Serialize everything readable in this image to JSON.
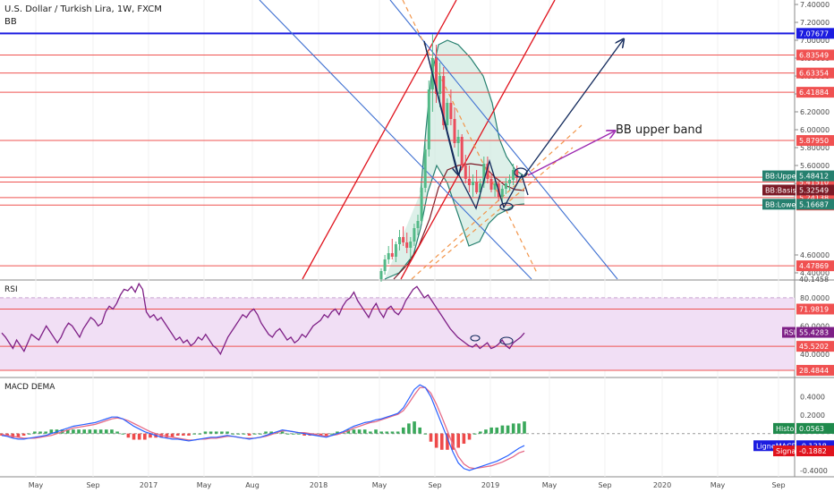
{
  "header": {
    "title": "U.S. Dollar / Turkish Lira, 1W, FXCM",
    "indicator": "BB"
  },
  "annotation": "BB upper band",
  "colors": {
    "up": "#53b987",
    "down": "#eb4d5c",
    "bb_basis": "#7b1a26",
    "bb_band": "#26806f",
    "bb_fill": "#cfe9e0",
    "rsi": "#7e1f86",
    "rsi_fill": "#f1dff5",
    "macd": "#2962ff",
    "signal": "#e66b87",
    "hline": "#ef5350",
    "arrow": "#132a5c",
    "annot_arrow": "#9c27b0"
  },
  "chart_data": [
    {
      "type": "candlestick",
      "panel": "price",
      "x_ticks": [
        "May",
        "Sep",
        "2017",
        "May",
        "Aug",
        "2018",
        "May",
        "Sep",
        "2019",
        "May",
        "Sep",
        "2020",
        "May",
        "Sep"
      ],
      "y_ticks": [
        "7.40000",
        "7.20000",
        "7.00000",
        "6.80000",
        "6.60000",
        "6.40000",
        "6.20000",
        "6.00000",
        "5.80000",
        "5.60000",
        "5.40000",
        "4.60000",
        "4.40000"
      ],
      "ylim": [
        4.33,
        7.45
      ],
      "horizontal_levels": [
        {
          "label": "7.07677",
          "value": 7.07677,
          "color": "#1c1ce0"
        },
        {
          "label": "6.83549",
          "value": 6.83549,
          "color": "#ef5350"
        },
        {
          "label": "6.63354",
          "value": 6.63354,
          "color": "#ef5350"
        },
        {
          "label": "6.41884",
          "value": 6.41884,
          "color": "#ef5350"
        },
        {
          "label": "5.87950",
          "value": 5.8795,
          "color": "#ef5350"
        },
        {
          "label": "5.46863",
          "value": 5.46863,
          "color": "#ef5350"
        },
        {
          "label": "5.41510",
          "value": 5.4151,
          "color": "#ef5350"
        },
        {
          "label": "5.24138",
          "value": 5.24138,
          "color": "#ef5350"
        },
        {
          "label": "5.15799",
          "value": 5.15799,
          "color": "#ef5350"
        },
        {
          "label": "4.47869",
          "value": 4.47869,
          "color": "#ef5350"
        }
      ],
      "bb_tags": [
        {
          "label": "BB:Upper",
          "value_label": "5.48412",
          "value": 5.48412,
          "color": "#26806f"
        },
        {
          "label": "BB:Basis",
          "value_label": "5.32549",
          "value": 5.32549,
          "color": "#7b1a26"
        },
        {
          "label": "BB:Lower",
          "value_label": "5.16687",
          "value": 5.16687,
          "color": "#26806f"
        }
      ],
      "cut_off_label": "40.1458",
      "candles_w": [
        [
          4.33,
          4.45,
          4.3,
          4.42
        ],
        [
          4.42,
          4.6,
          4.38,
          4.55
        ],
        [
          4.55,
          4.7,
          4.5,
          4.62
        ],
        [
          4.62,
          4.78,
          4.55,
          4.58
        ],
        [
          4.58,
          4.75,
          4.52,
          4.72
        ],
        [
          4.72,
          4.88,
          4.65,
          4.8
        ],
        [
          4.8,
          4.92,
          4.7,
          4.74
        ],
        [
          4.74,
          4.85,
          4.62,
          4.68
        ],
        [
          4.68,
          4.8,
          4.55,
          4.75
        ],
        [
          4.75,
          4.95,
          4.7,
          4.9
        ],
        [
          4.9,
          5.05,
          4.82,
          4.98
        ],
        [
          4.98,
          5.4,
          4.95,
          5.35
        ],
        [
          5.35,
          5.85,
          5.3,
          5.78
        ],
        [
          5.78,
          6.55,
          5.7,
          6.45
        ],
        [
          6.45,
          7.07,
          6.2,
          6.8
        ],
        [
          6.8,
          6.95,
          6.3,
          6.4
        ],
        [
          6.4,
          6.75,
          6.25,
          6.6
        ],
        [
          6.6,
          6.7,
          6.0,
          6.05
        ],
        [
          6.05,
          6.35,
          5.95,
          6.3
        ],
        [
          6.3,
          6.45,
          6.05,
          6.12
        ],
        [
          6.12,
          6.25,
          5.8,
          5.85
        ],
        [
          5.85,
          6.0,
          5.7,
          5.92
        ],
        [
          5.92,
          5.95,
          5.55,
          5.6
        ],
        [
          5.6,
          5.72,
          5.4,
          5.45
        ],
        [
          5.45,
          5.6,
          5.3,
          5.38
        ],
        [
          5.38,
          5.5,
          5.25,
          5.42
        ],
        [
          5.42,
          5.55,
          5.28,
          5.3
        ],
        [
          5.3,
          5.45,
          5.22,
          5.4
        ],
        [
          5.4,
          5.7,
          5.35,
          5.62
        ],
        [
          5.62,
          5.7,
          5.4,
          5.45
        ],
        [
          5.45,
          5.52,
          5.3,
          5.33
        ],
        [
          5.33,
          5.45,
          5.25,
          5.4
        ],
        [
          5.4,
          5.42,
          5.2,
          5.25
        ],
        [
          5.25,
          5.38,
          5.18,
          5.34
        ],
        [
          5.34,
          5.46,
          5.28,
          5.4
        ],
        [
          5.4,
          5.5,
          5.32,
          5.44
        ],
        [
          5.44,
          5.62,
          5.38,
          5.55
        ],
        [
          5.55,
          5.6,
          5.4,
          5.46
        ]
      ]
    },
    {
      "type": "line",
      "panel": "rsi",
      "label": "RSI",
      "y_ticks": [
        "80.0000",
        "60.0000",
        "40.0000"
      ],
      "ylim": [
        24,
        92
      ],
      "levels": [
        {
          "label": "71.9819",
          "value": 71.9819
        },
        {
          "label": "45.5202",
          "value": 45.5202
        },
        {
          "label": "28.4844",
          "value": 28.4844
        }
      ],
      "current": {
        "label": "RSI",
        "value_label": "55.4283",
        "value": 55.4283
      },
      "values": [
        55,
        52,
        48,
        44,
        50,
        46,
        42,
        48,
        54,
        52,
        50,
        55,
        60,
        56,
        52,
        48,
        52,
        58,
        62,
        60,
        56,
        52,
        58,
        62,
        66,
        64,
        60,
        62,
        70,
        74,
        72,
        76,
        82,
        86,
        85,
        88,
        84,
        90,
        86,
        70,
        66,
        68,
        64,
        66,
        62,
        58,
        54,
        50,
        52,
        48,
        50,
        46,
        48,
        52,
        50,
        54,
        50,
        46,
        44,
        40,
        46,
        52,
        56,
        60,
        64,
        68,
        66,
        70,
        72,
        68,
        62,
        58,
        54,
        52,
        56,
        58,
        54,
        50,
        52,
        48,
        50,
        54,
        52,
        56,
        60,
        62,
        64,
        68,
        66,
        70,
        72,
        68,
        74,
        78,
        80,
        84,
        78,
        74,
        70,
        66,
        72,
        76,
        70,
        66,
        72,
        74,
        70,
        68,
        72,
        78,
        82,
        86,
        88,
        84,
        80,
        82,
        78,
        74,
        70,
        66,
        62,
        58,
        55,
        52,
        50,
        48,
        46,
        45,
        47,
        44,
        46,
        48,
        44,
        45,
        47,
        50,
        46,
        44,
        48,
        50,
        52,
        55
      ]
    },
    {
      "type": "bar+line",
      "panel": "macd",
      "label": "MACD DEMA",
      "y_ticks": [
        "0.4000",
        "0.2000",
        "-0.2000",
        "-0.4000"
      ],
      "ylim": [
        -0.46,
        0.6
      ],
      "tags": [
        {
          "label": "Histo",
          "value_label": "0.0563",
          "value": 0.0563,
          "color": "#1f8a4c"
        },
        {
          "label": "LigneMACD",
          "value_label": "-0.1318",
          "value": -0.1318,
          "color": "#1c1ce0"
        },
        {
          "label": "Signal",
          "value_label": "-0.1882",
          "value": -0.1882,
          "color": "#e0131d"
        }
      ],
      "macd": [
        -0.02,
        -0.03,
        -0.05,
        -0.06,
        -0.06,
        -0.05,
        -0.04,
        -0.03,
        -0.02,
        0,
        0.02,
        0.04,
        0.06,
        0.08,
        0.09,
        0.1,
        0.11,
        0.12,
        0.14,
        0.16,
        0.18,
        0.18,
        0.16,
        0.12,
        0.08,
        0.05,
        0.02,
        0,
        -0.02,
        -0.04,
        -0.05,
        -0.06,
        -0.06,
        -0.07,
        -0.08,
        -0.07,
        -0.06,
        -0.05,
        -0.04,
        -0.04,
        -0.03,
        -0.02,
        -0.03,
        -0.04,
        -0.05,
        -0.06,
        -0.05,
        -0.04,
        -0.02,
        0,
        0.02,
        0.04,
        0.03,
        0.02,
        0.01,
        0,
        -0.01,
        -0.02,
        -0.03,
        -0.04,
        -0.02,
        0,
        0.02,
        0.05,
        0.08,
        0.1,
        0.12,
        0.13,
        0.15,
        0.16,
        0.18,
        0.2,
        0.22,
        0.28,
        0.38,
        0.48,
        0.53,
        0.5,
        0.4,
        0.25,
        0.1,
        -0.05,
        -0.2,
        -0.32,
        -0.38,
        -0.4,
        -0.38,
        -0.36,
        -0.34,
        -0.32,
        -0.3,
        -0.27,
        -0.24,
        -0.2,
        -0.16,
        -0.13
      ],
      "signal": [
        -0.01,
        -0.02,
        -0.03,
        -0.04,
        -0.05,
        -0.05,
        -0.05,
        -0.04,
        -0.03,
        -0.02,
        0,
        0.02,
        0.04,
        0.06,
        0.07,
        0.08,
        0.09,
        0.1,
        0.12,
        0.14,
        0.16,
        0.17,
        0.16,
        0.14,
        0.11,
        0.08,
        0.05,
        0.02,
        0,
        -0.02,
        -0.03,
        -0.04,
        -0.05,
        -0.06,
        -0.07,
        -0.07,
        -0.06,
        -0.06,
        -0.05,
        -0.05,
        -0.04,
        -0.03,
        -0.03,
        -0.04,
        -0.05,
        -0.05,
        -0.05,
        -0.04,
        -0.03,
        -0.01,
        0.01,
        0.03,
        0.03,
        0.02,
        0.01,
        0.01,
        0,
        -0.01,
        -0.02,
        -0.03,
        -0.02,
        -0.01,
        0.01,
        0.03,
        0.06,
        0.08,
        0.1,
        0.12,
        0.13,
        0.15,
        0.17,
        0.19,
        0.21,
        0.25,
        0.33,
        0.42,
        0.5,
        0.5,
        0.44,
        0.32,
        0.18,
        0.03,
        -0.12,
        -0.25,
        -0.33,
        -0.37,
        -0.38,
        -0.37,
        -0.36,
        -0.35,
        -0.33,
        -0.31,
        -0.28,
        -0.25,
        -0.21,
        -0.19
      ]
    }
  ]
}
